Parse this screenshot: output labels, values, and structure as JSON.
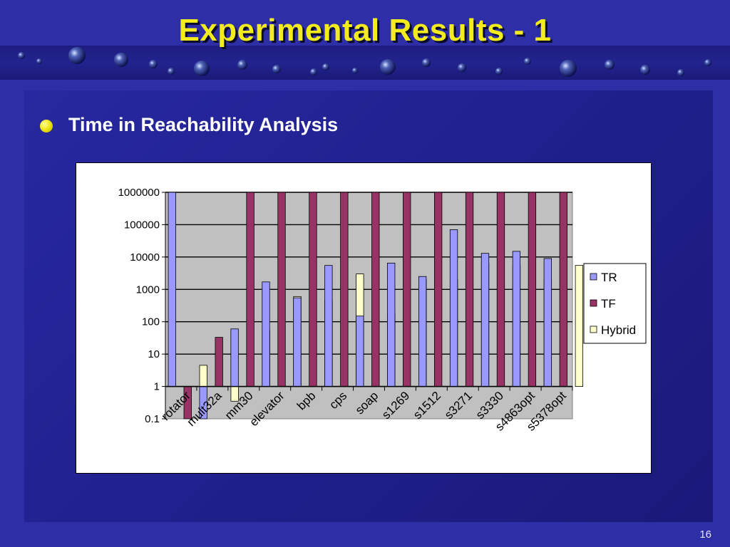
{
  "slide": {
    "title": "Experimental Results - 1",
    "bullet": "Time in Reachability Analysis",
    "page_number": "16"
  },
  "colors": {
    "background": "#2e2ea6",
    "title": "#f2ec1f",
    "bullet_dot": "#f0e81a",
    "plot_area": "#c0c0c0",
    "TR": "#9999ff",
    "TF": "#993366",
    "Hybrid": "#ffffcc"
  },
  "chart_data": {
    "type": "bar",
    "yscale": "log",
    "ylim": [
      0.1,
      1000000
    ],
    "yticks": [
      "0.1",
      "1",
      "10",
      "100",
      "1000",
      "10000",
      "100000",
      "1000000"
    ],
    "grid": true,
    "legend_position": "right",
    "categories": [
      "rotator",
      "mult32a",
      "mm30",
      "elevator",
      "bpb",
      "cps",
      "soap",
      "s1269",
      "s1512",
      "s3271",
      "s3330",
      "s4863opt",
      "s5378opt"
    ],
    "series": [
      {
        "name": "TR",
        "color": "#9999ff",
        "values": [
          1000000,
          0.1,
          60,
          1700,
          550,
          5500,
          150,
          6500,
          2500,
          70000,
          13000,
          15000,
          9000
        ]
      },
      {
        "name": "TF",
        "color": "#993366",
        "values": [
          0.1,
          33,
          1000000,
          1000000,
          1000000,
          1000000,
          1000000,
          1000000,
          1000000,
          1000000,
          1000000,
          1000000,
          1000000
        ]
      },
      {
        "name": "Hybrid",
        "color": "#ffffcc",
        "values": [
          4.5,
          0.35,
          55,
          600,
          450,
          3000,
          180,
          2000,
          2000,
          6500,
          5500,
          2000,
          5500
        ]
      }
    ]
  }
}
